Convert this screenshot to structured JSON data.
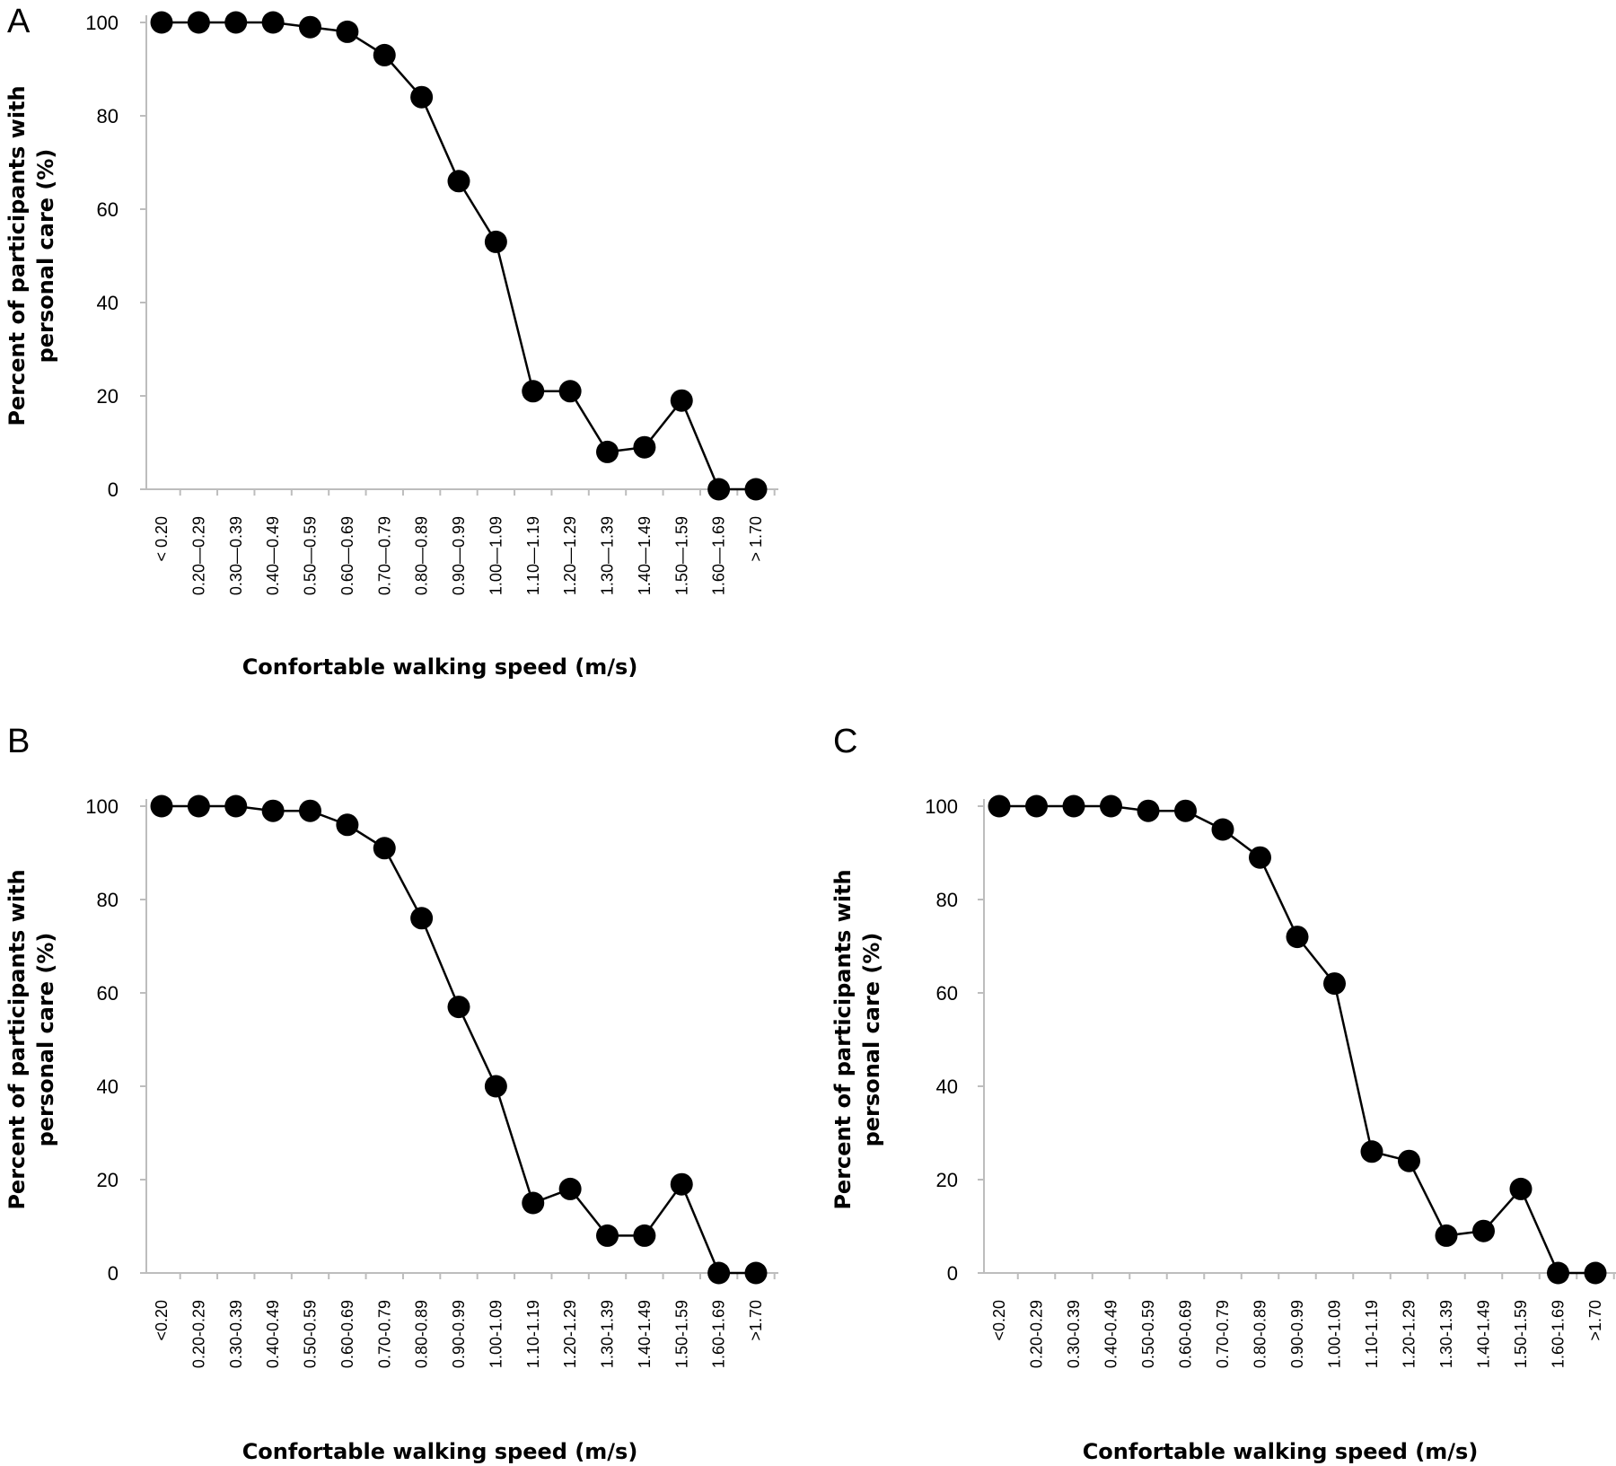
{
  "chart_data": [
    {
      "panel": "A",
      "type": "line",
      "categories": [
        "< 0.20",
        "0.20—0.29",
        "0.30—0.39",
        "0.40—0.49",
        "0.50—0.59",
        "0.60—0.69",
        "0.70—0.79",
        "0.80—0.89",
        "0.90—0.99",
        "1.00—1.09",
        "1.10—1.19",
        "1.20—1.29",
        "1.30—1.39",
        "1.40—1.49",
        "1.50—1.59",
        "1.60—1.69",
        "> 1.70"
      ],
      "values": [
        100,
        100,
        100,
        100,
        99,
        98,
        93,
        84,
        66,
        53,
        21,
        21,
        8,
        9,
        19,
        0,
        0
      ],
      "xlabel": "Confortable walking speed (m/s)",
      "ylabel_line1": "Percent of participants with",
      "ylabel_line2": "personal care  (%)",
      "yticks": [
        0,
        20,
        40,
        60,
        80,
        100
      ],
      "ylim": [
        0,
        100
      ],
      "marker": "filled-circle",
      "color": "#000000",
      "grid": false
    },
    {
      "panel": "B",
      "type": "line",
      "categories": [
        "<0.20",
        "0.20-0.29",
        "0.30-0.39",
        "0.40-0.49",
        "0.50-0.59",
        "0.60-0.69",
        "0.70-0.79",
        "0.80-0.89",
        "0.90-0.99",
        "1.00-1.09",
        "1.10-1.19",
        "1.20-1.29",
        "1.30-1.39",
        "1.40-1.49",
        "1.50-1.59",
        "1.60-1.69",
        ">1.70"
      ],
      "values": [
        100,
        100,
        100,
        99,
        99,
        96,
        91,
        76,
        57,
        40,
        15,
        18,
        8,
        8,
        19,
        0,
        0
      ],
      "xlabel": "Confortable walking speed (m/s)",
      "ylabel_line1": "Percent of participants with",
      "ylabel_line2": "personal care  (%)",
      "yticks": [
        0,
        20,
        40,
        60,
        80,
        100
      ],
      "ylim": [
        0,
        100
      ],
      "marker": "filled-circle",
      "color": "#000000",
      "grid": false
    },
    {
      "panel": "C",
      "type": "line",
      "categories": [
        "<0.20",
        "0.20-0.29",
        "0.30-0.39",
        "0.40-0.49",
        "0.50-0.59",
        "0.60-0.69",
        "0.70-0.79",
        "0.80-0.89",
        "0.90-0.99",
        "1.00-1.09",
        "1.10-1.19",
        "1.20-1.29",
        "1.30-1.39",
        "1.40-1.49",
        "1.50-1.59",
        "1.60-1.69",
        ">1.70"
      ],
      "values": [
        100,
        100,
        100,
        100,
        99,
        99,
        95,
        89,
        72,
        62,
        26,
        24,
        8,
        9,
        18,
        0,
        0
      ],
      "xlabel": "Confortable walking speed (m/s)",
      "ylabel_line1": "Percent of participants with",
      "ylabel_line2": "personal care  (%)",
      "yticks": [
        0,
        20,
        40,
        60,
        80,
        100
      ],
      "ylim": [
        0,
        100
      ],
      "marker": "filled-circle",
      "color": "#000000",
      "grid": false
    }
  ]
}
